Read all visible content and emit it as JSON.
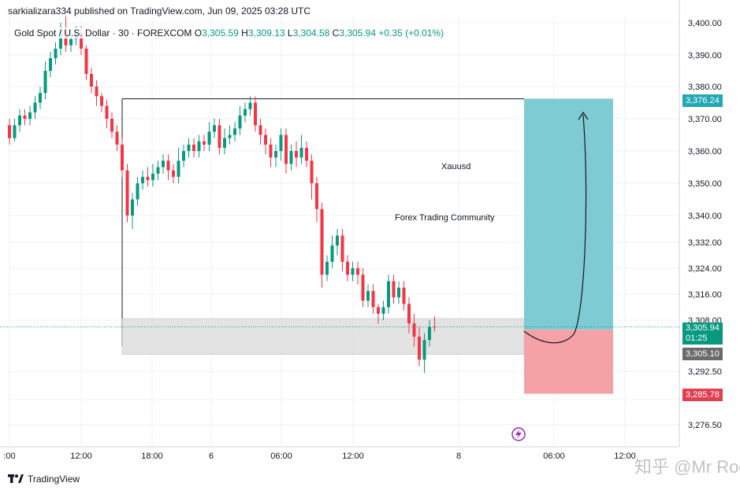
{
  "header": {
    "publisher_text": "sarkializara334 published on TradingView.com, Jun 09, 2025 03:28 UTC"
  },
  "legend": {
    "symbol": "Gold Spot / U.S. Dollar · 30 · FOREXCOM",
    "o_label": "O",
    "o_value": "3,305.59",
    "h_label": "H",
    "h_value": "3,309.13",
    "l_label": "L",
    "l_value": "3,304.58",
    "c_label": "C",
    "c_value": "3,305.94",
    "change": "+0.35 (+0.01%)"
  },
  "annotations": {
    "text1": "Xauusd",
    "text2": "Forex Trading Community"
  },
  "price_labels": {
    "target": "3,376.24",
    "current": "3,305.94",
    "countdown": "01:25",
    "entry": "3,305.10",
    "stop": "3,285.78"
  },
  "colors": {
    "up": "#089981",
    "down": "#f23645",
    "target_zone": "#7ecbd3",
    "stop_zone": "#f5a2a6",
    "demand_zone": "#e0e0e0",
    "target_label": "#22a7b5",
    "stop_label": "#e04050",
    "entry_label": "#6b6b6b"
  },
  "footer": {
    "logo_text": "TradingView"
  },
  "watermark": "知乎 @Mr Rocky",
  "chart_data": {
    "type": "candlestick",
    "y_axis_ticks": [
      "3,400.00",
      "3,390.00",
      "3,380.00",
      "3,370.00",
      "3,360.00",
      "3,350.00",
      "3,340.00",
      "3,332.00",
      "3,324.00",
      "3,316.00",
      "3,308.00",
      "3,292.50",
      "3,276.50"
    ],
    "x_axis_ticks": [
      ":00",
      "12:00",
      "18:00",
      "6",
      "06:00",
      "12:00",
      "8",
      "06:00",
      "12:00"
    ],
    "ylim": [
      3270,
      3402
    ],
    "candles": [
      [
        3368,
        3364,
        3370,
        3362
      ],
      [
        3364,
        3368,
        3370,
        3363
      ],
      [
        3368,
        3371,
        3373,
        3366
      ],
      [
        3371,
        3370,
        3373,
        3368
      ],
      [
        3370,
        3372,
        3374,
        3368
      ],
      [
        3372,
        3375,
        3377,
        3370
      ],
      [
        3375,
        3378,
        3380,
        3373
      ],
      [
        3378,
        3385,
        3388,
        3376
      ],
      [
        3385,
        3389,
        3391,
        3383
      ],
      [
        3389,
        3392,
        3394,
        3387
      ],
      [
        3392,
        3398,
        3400,
        3390
      ],
      [
        3398,
        3393,
        3402,
        3391
      ],
      [
        3393,
        3395,
        3398,
        3391
      ],
      [
        3395,
        3397,
        3399,
        3393
      ],
      [
        3397,
        3392,
        3399,
        3390
      ],
      [
        3392,
        3384,
        3393,
        3382
      ],
      [
        3384,
        3380,
        3386,
        3378
      ],
      [
        3380,
        3377,
        3382,
        3374
      ],
      [
        3377,
        3374,
        3378,
        3372
      ],
      [
        3374,
        3370,
        3376,
        3367
      ],
      [
        3370,
        3366,
        3372,
        3364
      ],
      [
        3366,
        3362,
        3368,
        3360
      ],
      [
        3362,
        3354,
        3364,
        3352
      ],
      [
        3354,
        3340,
        3356,
        3338
      ],
      [
        3340,
        3345,
        3347,
        3336
      ],
      [
        3345,
        3350,
        3352,
        3343
      ],
      [
        3350,
        3352,
        3354,
        3348
      ],
      [
        3352,
        3351,
        3355,
        3349
      ],
      [
        3351,
        3353,
        3356,
        3349
      ],
      [
        3353,
        3355,
        3357,
        3351
      ],
      [
        3355,
        3357,
        3359,
        3353
      ],
      [
        3357,
        3354,
        3359,
        3351
      ],
      [
        3354,
        3352,
        3356,
        3350
      ],
      [
        3352,
        3357,
        3361,
        3350
      ],
      [
        3357,
        3360,
        3362,
        3355
      ],
      [
        3360,
        3362,
        3364,
        3358
      ],
      [
        3362,
        3360,
        3364,
        3358
      ],
      [
        3360,
        3363,
        3365,
        3358
      ],
      [
        3363,
        3362,
        3365,
        3360
      ],
      [
        3362,
        3366,
        3369,
        3360
      ],
      [
        3366,
        3368,
        3370,
        3364
      ],
      [
        3368,
        3361,
        3370,
        3359
      ],
      [
        3361,
        3364,
        3367,
        3359
      ],
      [
        3364,
        3365,
        3368,
        3362
      ],
      [
        3365,
        3367,
        3369,
        3363
      ],
      [
        3367,
        3371,
        3374,
        3365
      ],
      [
        3371,
        3373,
        3375,
        3369
      ],
      [
        3373,
        3375,
        3377,
        3371
      ],
      [
        3375,
        3368,
        3377,
        3366
      ],
      [
        3368,
        3365,
        3370,
        3362
      ],
      [
        3365,
        3362,
        3367,
        3359
      ],
      [
        3362,
        3358,
        3364,
        3355
      ],
      [
        3358,
        3360,
        3362,
        3355
      ],
      [
        3360,
        3365,
        3367,
        3357
      ],
      [
        3365,
        3356,
        3367,
        3353
      ],
      [
        3356,
        3360,
        3362,
        3354
      ],
      [
        3360,
        3358,
        3363,
        3355
      ],
      [
        3358,
        3361,
        3365,
        3356
      ],
      [
        3361,
        3357,
        3363,
        3355
      ],
      [
        3357,
        3350,
        3359,
        3345
      ],
      [
        3350,
        3342,
        3352,
        3338
      ],
      [
        3342,
        3322,
        3344,
        3318
      ],
      [
        3322,
        3326,
        3328,
        3320
      ],
      [
        3326,
        3331,
        3334,
        3324
      ],
      [
        3331,
        3334,
        3336,
        3328
      ],
      [
        3334,
        3326,
        3336,
        3323
      ],
      [
        3326,
        3322,
        3328,
        3320
      ],
      [
        3322,
        3324,
        3326,
        3320
      ],
      [
        3324,
        3322,
        3326,
        3319
      ],
      [
        3322,
        3314,
        3324,
        3312
      ],
      [
        3314,
        3317,
        3319,
        3312
      ],
      [
        3317,
        3312,
        3319,
        3310
      ],
      [
        3312,
        3310,
        3313,
        3307
      ],
      [
        3310,
        3312,
        3314,
        3308
      ],
      [
        3312,
        3320,
        3322,
        3310
      ],
      [
        3320,
        3315,
        3322,
        3313
      ],
      [
        3315,
        3318,
        3320,
        3313
      ],
      [
        3318,
        3313,
        3320,
        3311
      ],
      [
        3313,
        3307,
        3315,
        3304
      ],
      [
        3307,
        3303,
        3310,
        3300
      ],
      [
        3303,
        3296,
        3306,
        3294
      ],
      [
        3296,
        3302,
        3304,
        3292
      ],
      [
        3302,
        3306,
        3308,
        3300
      ],
      [
        3306,
        3305.94,
        3309.13,
        3304.58
      ]
    ],
    "levels": {
      "target": 3376.24,
      "current": 3305.94,
      "entry": 3305.1,
      "stop": 3285.78,
      "zone_top": 3308.5,
      "zone_bottom": 3299.5,
      "box_top": 3376.2,
      "box_bottom": 3300.5
    }
  }
}
